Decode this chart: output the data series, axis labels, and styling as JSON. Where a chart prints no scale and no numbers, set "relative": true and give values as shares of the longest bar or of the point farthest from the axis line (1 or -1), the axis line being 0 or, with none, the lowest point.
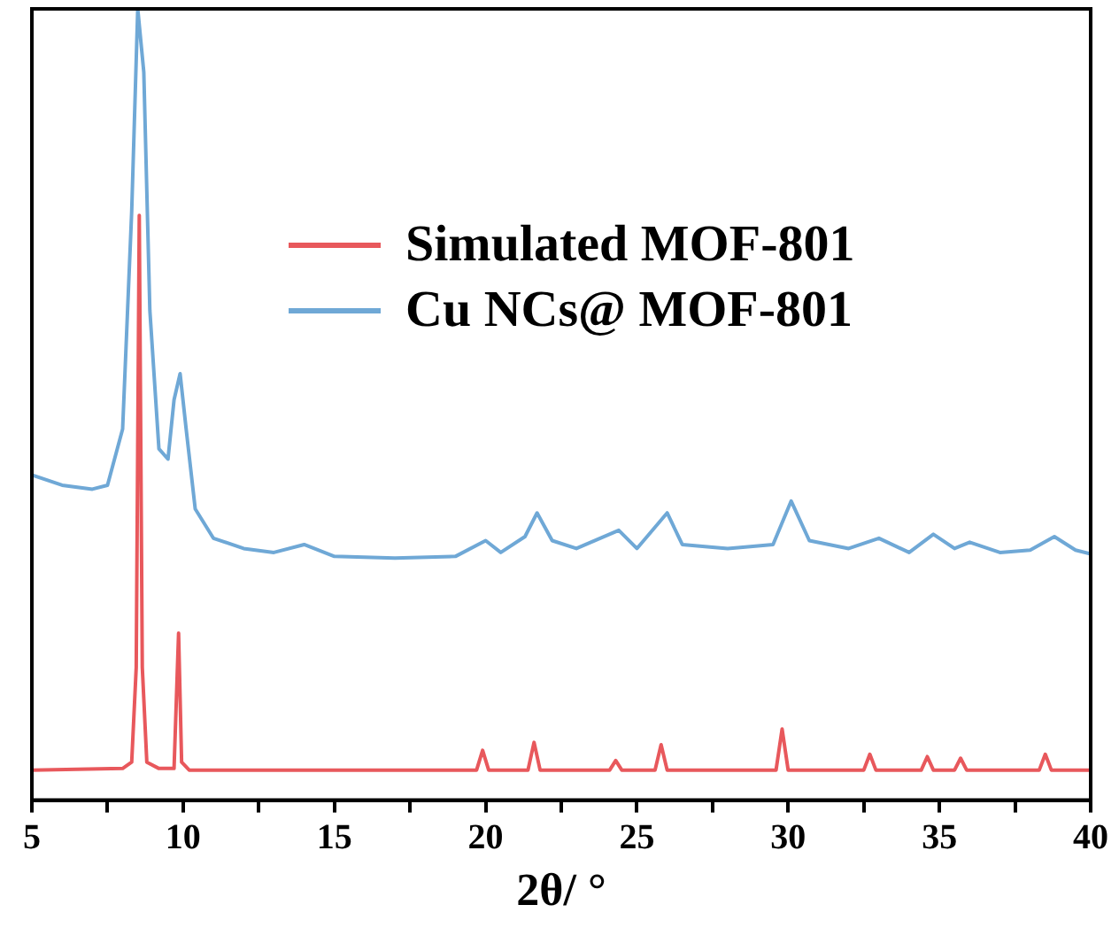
{
  "chart_data": {
    "type": "line",
    "xlabel": "2θ/ °",
    "relative": true,
    "xlim": [
      5,
      40
    ],
    "xticks": [
      5,
      {
        "value": 7.5,
        "label": null
      },
      10,
      {
        "value": 12.5,
        "label": null
      },
      15,
      {
        "value": 17.5,
        "label": null
      },
      20,
      {
        "value": 22.5,
        "label": null
      },
      25,
      {
        "value": 27.5,
        "label": null
      },
      30,
      {
        "value": 32.5,
        "label": null
      },
      35,
      {
        "value": 37.5,
        "label": null
      },
      40
    ],
    "grid": false,
    "legend": "top right",
    "marker": "none",
    "line_style": "solid",
    "series": [
      {
        "name": "Simulated MOF-801",
        "color": "#e8585c",
        "x": [
          5,
          8.0,
          8.3,
          8.45,
          8.55,
          8.65,
          8.8,
          9.2,
          9.7,
          9.85,
          9.95,
          10.2,
          19.7,
          19.9,
          20.1,
          21.4,
          21.6,
          21.8,
          24.1,
          24.3,
          24.5,
          25.6,
          25.8,
          26.0,
          29.6,
          29.8,
          30.0,
          32.5,
          32.7,
          32.9,
          34.4,
          34.6,
          34.8,
          35.5,
          35.7,
          35.9,
          38.3,
          38.5,
          38.7,
          40
        ],
        "values": [
          0.038,
          0.04,
          0.048,
          0.168,
          0.739,
          0.168,
          0.048,
          0.04,
          0.04,
          0.211,
          0.048,
          0.038,
          0.038,
          0.063,
          0.038,
          0.038,
          0.073,
          0.038,
          0.038,
          0.05,
          0.038,
          0.038,
          0.07,
          0.038,
          0.038,
          0.09,
          0.038,
          0.038,
          0.058,
          0.038,
          0.038,
          0.055,
          0.038,
          0.038,
          0.053,
          0.038,
          0.038,
          0.058,
          0.038,
          0.038
        ]
      },
      {
        "name": "Cu NCs@ MOF-801",
        "color": "#6fa8d6",
        "x": [
          5,
          6,
          7,
          7.5,
          8.0,
          8.3,
          8.5,
          8.7,
          8.9,
          9.2,
          9.5,
          9.7,
          9.9,
          10.1,
          10.4,
          11,
          12,
          13,
          14,
          15,
          17,
          19,
          20,
          20.5,
          21.3,
          21.7,
          22.2,
          23,
          24.4,
          25,
          26,
          26.5,
          28,
          29.5,
          30.1,
          30.7,
          32,
          33,
          34,
          34.8,
          35.5,
          36,
          37,
          38,
          38.8,
          39.5,
          40
        ],
        "values": [
          0.411,
          0.398,
          0.393,
          0.398,
          0.469,
          0.744,
          1,
          0.92,
          0.619,
          0.444,
          0.431,
          0.506,
          0.539,
          0.469,
          0.368,
          0.331,
          0.318,
          0.313,
          0.323,
          0.308,
          0.306,
          0.308,
          0.328,
          0.313,
          0.333,
          0.363,
          0.328,
          0.318,
          0.341,
          0.318,
          0.363,
          0.323,
          0.318,
          0.323,
          0.378,
          0.328,
          0.318,
          0.331,
          0.313,
          0.336,
          0.318,
          0.326,
          0.313,
          0.316,
          0.333,
          0.316,
          0.311
        ]
      }
    ]
  }
}
